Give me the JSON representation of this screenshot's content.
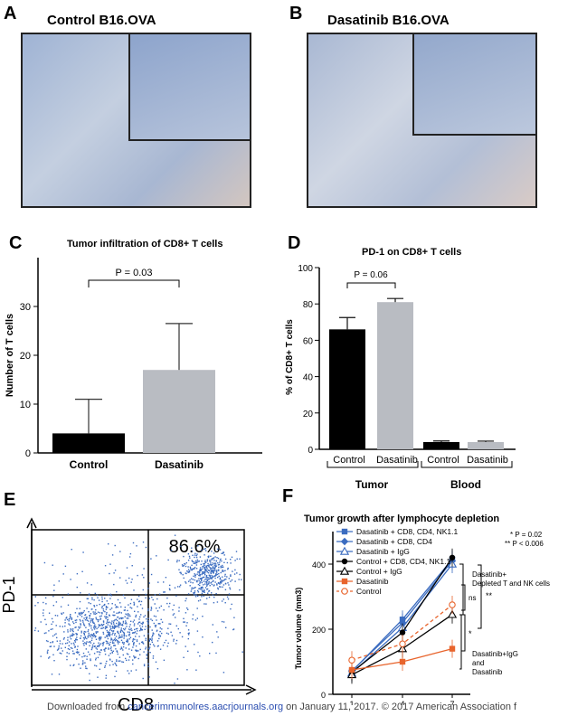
{
  "panels": {
    "A": {
      "letter": "A",
      "title": "Control B16.OVA"
    },
    "B": {
      "letter": "B",
      "title": "Dasatinib B16.OVA"
    },
    "C": {
      "letter": "C",
      "title": "Tumor infiltration of CD8+ T cells"
    },
    "D": {
      "letter": "D",
      "title": "PD-1 on CD8+ T cells"
    },
    "E": {
      "letter": "E",
      "quadrant_percent": "86.6%",
      "xlabel": "CD8",
      "ylabel": "PD-1"
    },
    "F": {
      "letter": "F",
      "title": "Tumor growth after lymphocyte depletion"
    }
  },
  "colors": {
    "control_bar": "#000000",
    "dasatinib_bar": "#b9bcc2",
    "tissue_blue": "#7f9bc6",
    "dot_blue": "#3b6cc0",
    "orange": "#e8642c"
  },
  "chart_data": [
    {
      "id": "C",
      "type": "bar",
      "title": "Tumor infiltration of CD8+ T cells",
      "ylabel": "Number of T cells",
      "xlabel": "",
      "categories": [
        "Control",
        "Dasatinib"
      ],
      "values": [
        4,
        17
      ],
      "errors": [
        7,
        9.5
      ],
      "ylim": [
        0,
        40
      ],
      "yticks": [
        0,
        10,
        20,
        30
      ],
      "annotation": "P = 0.03"
    },
    {
      "id": "D",
      "type": "bar",
      "title": "PD-1 on CD8+ T cells",
      "ylabel": "% of CD8+ T cells",
      "categories": [
        "Control",
        "Dasatinib",
        "Control",
        "Dasatinib"
      ],
      "groups": [
        "Tumor",
        "Blood"
      ],
      "values": [
        66,
        81,
        4,
        4
      ],
      "errors": [
        6.5,
        2,
        0.6,
        0.5
      ],
      "ylim": [
        0,
        100
      ],
      "yticks": [
        0,
        20,
        40,
        60,
        80,
        100
      ],
      "annotation": "P = 0.06"
    },
    {
      "id": "F",
      "type": "line",
      "title": "Tumor growth after lymphocyte depletion",
      "ylabel": "Tumor volume (mm3)",
      "x": [
        1,
        4,
        7
      ],
      "ylim": [
        0,
        500
      ],
      "yticks": [
        0,
        200,
        400
      ],
      "series": [
        {
          "name": "Dasatinib + CD8, CD4, NK1.1",
          "values": [
            70,
            230,
            415
          ],
          "color": "#3b6cc0",
          "marker": "square",
          "dashed": false
        },
        {
          "name": "Dasatinib + CD8, CD4",
          "values": [
            72,
            220,
            410
          ],
          "color": "#3b6cc0",
          "marker": "diamond",
          "dashed": false
        },
        {
          "name": "Dasatinib + IgG",
          "values": [
            65,
            205,
            400
          ],
          "color": "#3b6cc0",
          "marker": "triangle-open",
          "dashed": false
        },
        {
          "name": "Control + CD8, CD4, NK1.1",
          "values": [
            68,
            190,
            420
          ],
          "color": "#000000",
          "marker": "circle",
          "dashed": false
        },
        {
          "name": "Control + IgG",
          "values": [
            60,
            140,
            245
          ],
          "color": "#000000",
          "marker": "triangle-open",
          "dashed": false
        },
        {
          "name": "Dasatinib",
          "values": [
            75,
            100,
            140
          ],
          "color": "#e8642c",
          "marker": "square",
          "dashed": false
        },
        {
          "name": "Control",
          "values": [
            105,
            155,
            275
          ],
          "color": "#e8642c",
          "marker": "circle-open",
          "dashed": true
        }
      ],
      "significance": [
        "* P = 0.02",
        "** P < 0.006"
      ],
      "annotations": [
        "Dasatinib+",
        "Depleted T and NK cells",
        "ns",
        "**",
        "*",
        "Dasatinib+IgG",
        "and",
        "Dasatinib"
      ]
    }
  ],
  "footer": {
    "prefix": "Downloaded from ",
    "link": "cancerimmunolres.aacrjournals.org",
    "suffix": " on January 11, 2017. © 2017 American Association f"
  }
}
